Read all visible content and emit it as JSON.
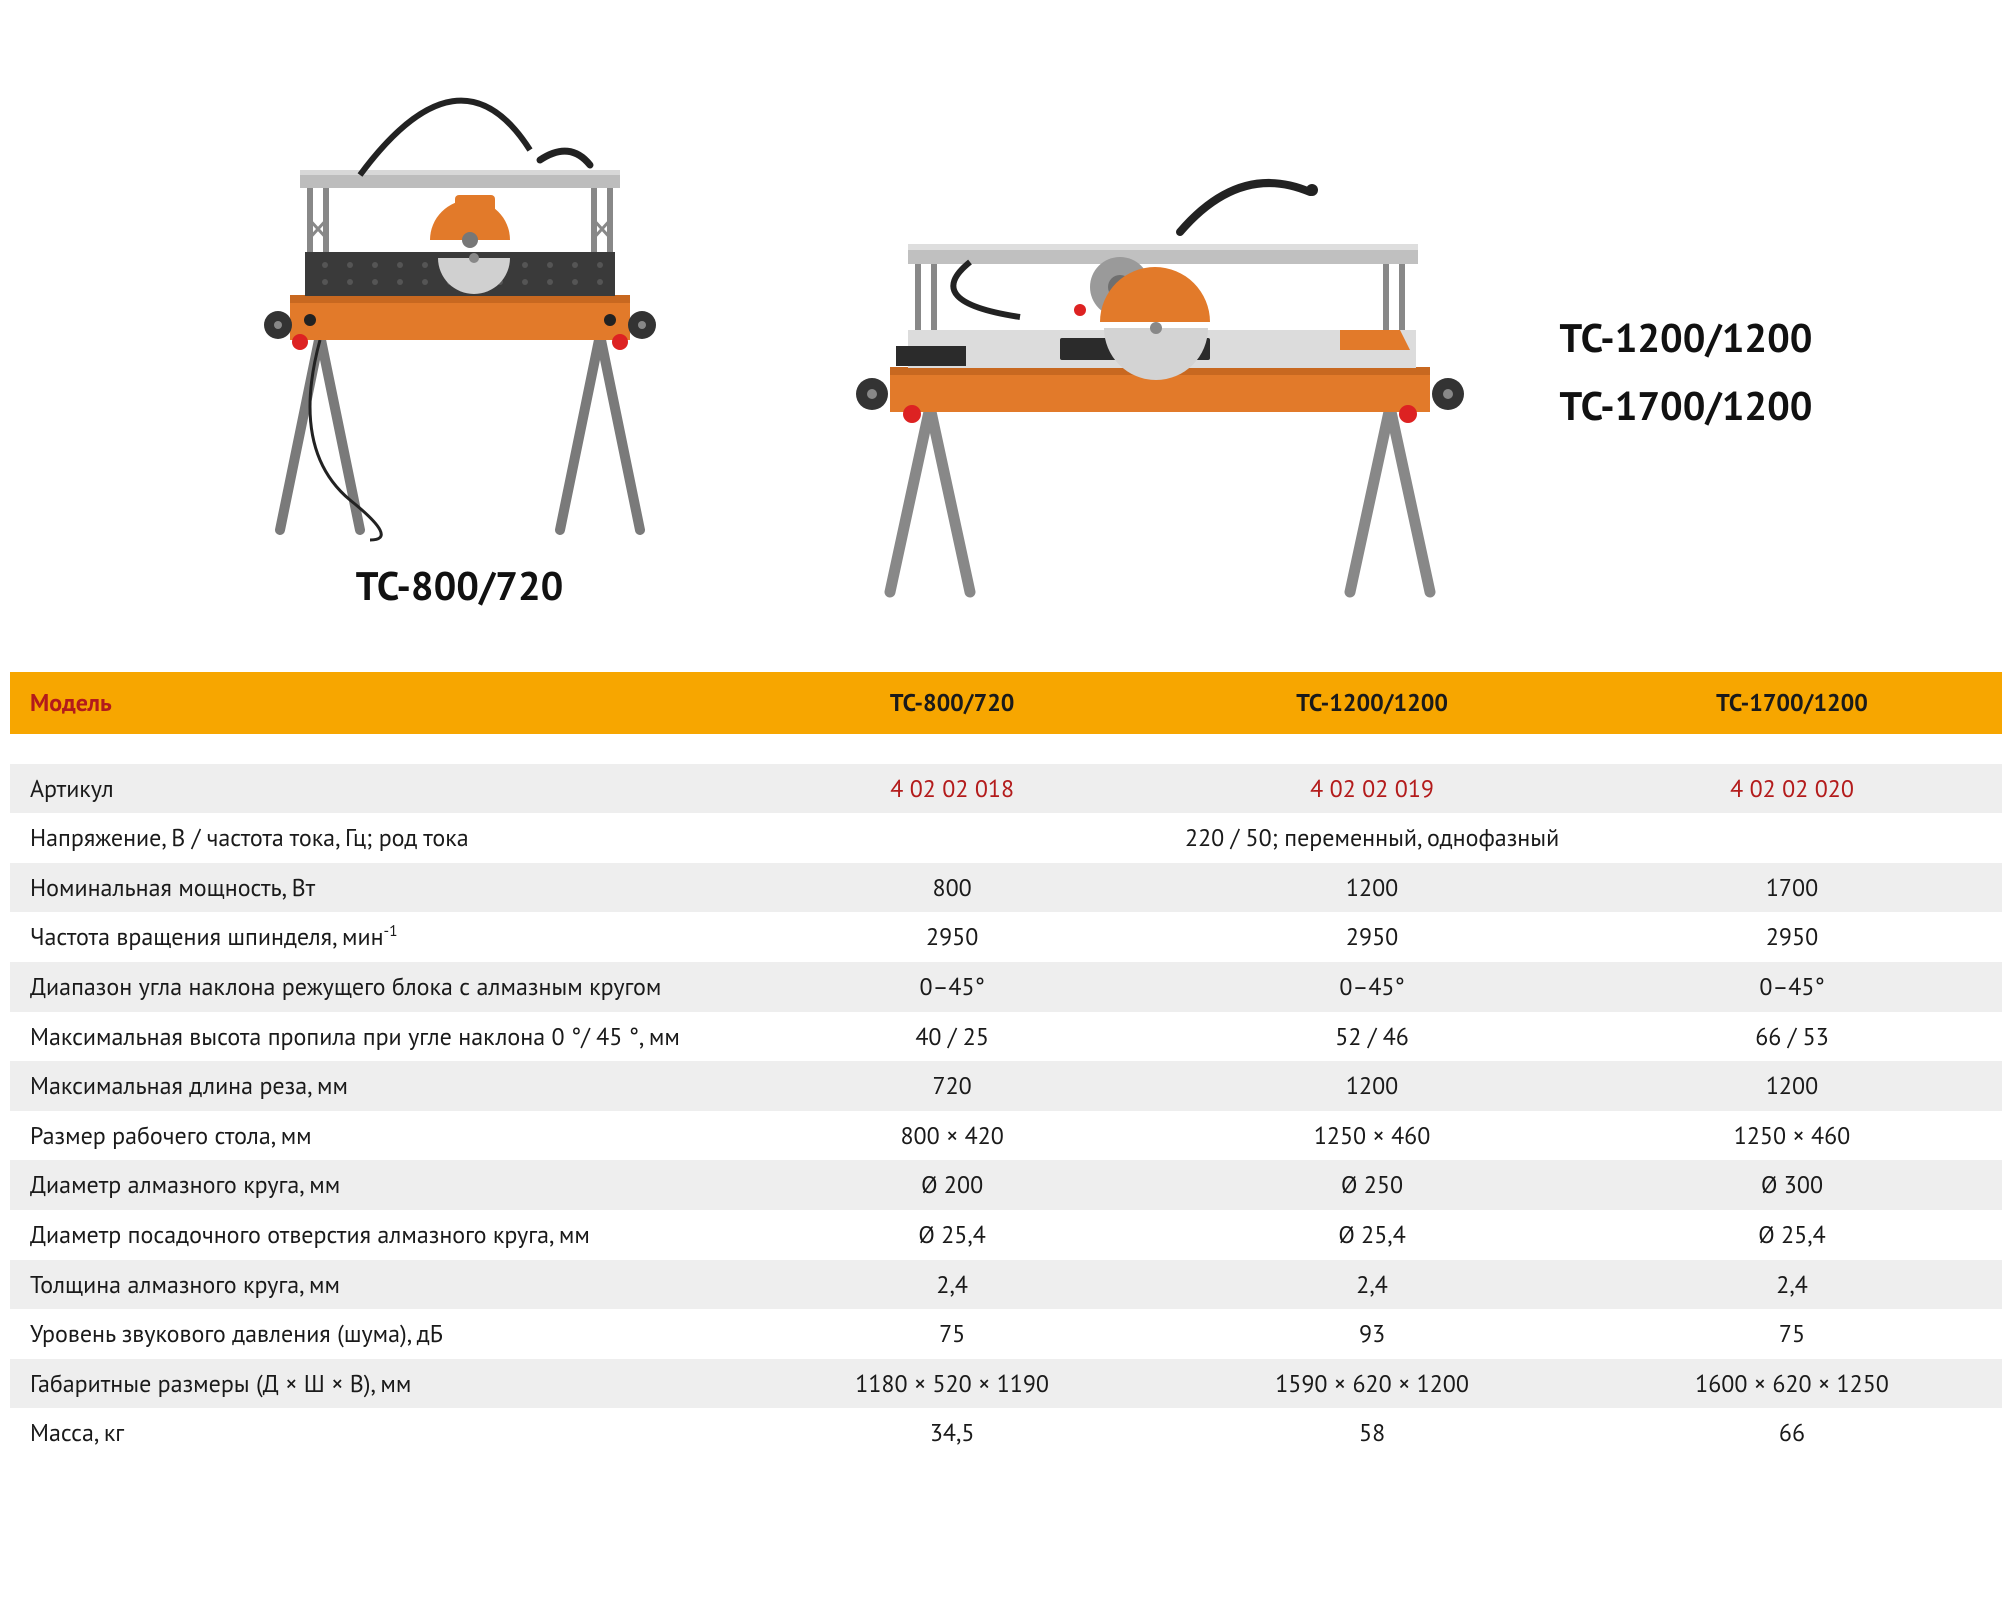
{
  "colors": {
    "header_bg": "#f7a600",
    "header_text_model": "#b31b1b",
    "header_text_cols": "#1a1a1a",
    "row_alt_bg": "#eeeeee",
    "row_bg": "#ffffff",
    "article_text": "#b31b1b",
    "body_text": "#1a1a1a"
  },
  "products": {
    "left": {
      "label": "ТС-800/720"
    },
    "right": {
      "labels": [
        "ТС-1200/1200",
        "ТС-1700/1200"
      ]
    }
  },
  "table": {
    "header": {
      "label": "Модель",
      "cols": [
        "ТС-800/720",
        "ТС-1200/1200",
        "ТС-1700/1200"
      ]
    },
    "rows": [
      {
        "label": "Артикул",
        "vals": [
          "4 02 02 018",
          "4 02 02 019",
          "4 02 02 020"
        ],
        "article": true
      },
      {
        "label": "Напряжение, В / частота тока, Гц; род тока",
        "span": "220 / 50; переменный, однофазный"
      },
      {
        "label": "Номинальная мощность, Вт",
        "vals": [
          "800",
          "1200",
          "1700"
        ]
      },
      {
        "label_html": "Частота вращения шпинделя, мин<sup>-1</sup>",
        "vals": [
          "2950",
          "2950",
          "2950"
        ]
      },
      {
        "label": "Диапазон угла наклона режущего блока с алмазным кругом",
        "vals": [
          "0–45°",
          "0–45°",
          "0–45°"
        ]
      },
      {
        "label": "Максимальная высота пропила при угле наклона 0 °/ 45 °, мм",
        "vals": [
          "40 / 25",
          "52 / 46",
          "66 / 53"
        ]
      },
      {
        "label": "Максимальная длина реза, мм",
        "vals": [
          "720",
          "1200",
          "1200"
        ]
      },
      {
        "label": "Размер рабочего стола, мм",
        "vals": [
          "800 × 420",
          "1250 × 460",
          "1250 × 460"
        ]
      },
      {
        "label": "Диаметр алмазного круга, мм",
        "vals": [
          "Ø 200",
          "Ø 250",
          "Ø 300"
        ]
      },
      {
        "label": "Диаметр посадочного отверстия алмазного круга, мм",
        "vals": [
          "Ø 25,4",
          "Ø 25,4",
          "Ø 25,4"
        ]
      },
      {
        "label": "Толщина алмазного круга, мм",
        "vals": [
          "2,4",
          "2,4",
          "2,4"
        ]
      },
      {
        "label": "Уровень звукового давления (шума), дБ",
        "vals": [
          "75",
          "93",
          "75"
        ]
      },
      {
        "label": "Габаритные размеры  (Д × Ш × В), мм",
        "vals": [
          "1180 × 520 × 1190",
          "1590 × 620 × 1200",
          "1600 × 620 × 1250"
        ]
      },
      {
        "label": "Масса, кг",
        "vals": [
          "34,5",
          "58",
          "66"
        ]
      }
    ]
  },
  "illustration": {
    "orange": "#e27a2a",
    "orange_dark": "#c86820",
    "grey_rail": "#b8b8b8",
    "grey_rail_dark": "#9a9a9a",
    "leg": "#9e9e9e",
    "leg_dark": "#7a7a7a",
    "table_dark": "#3a3a3a",
    "black": "#222222",
    "red": "#d22",
    "wheel": "#333"
  }
}
